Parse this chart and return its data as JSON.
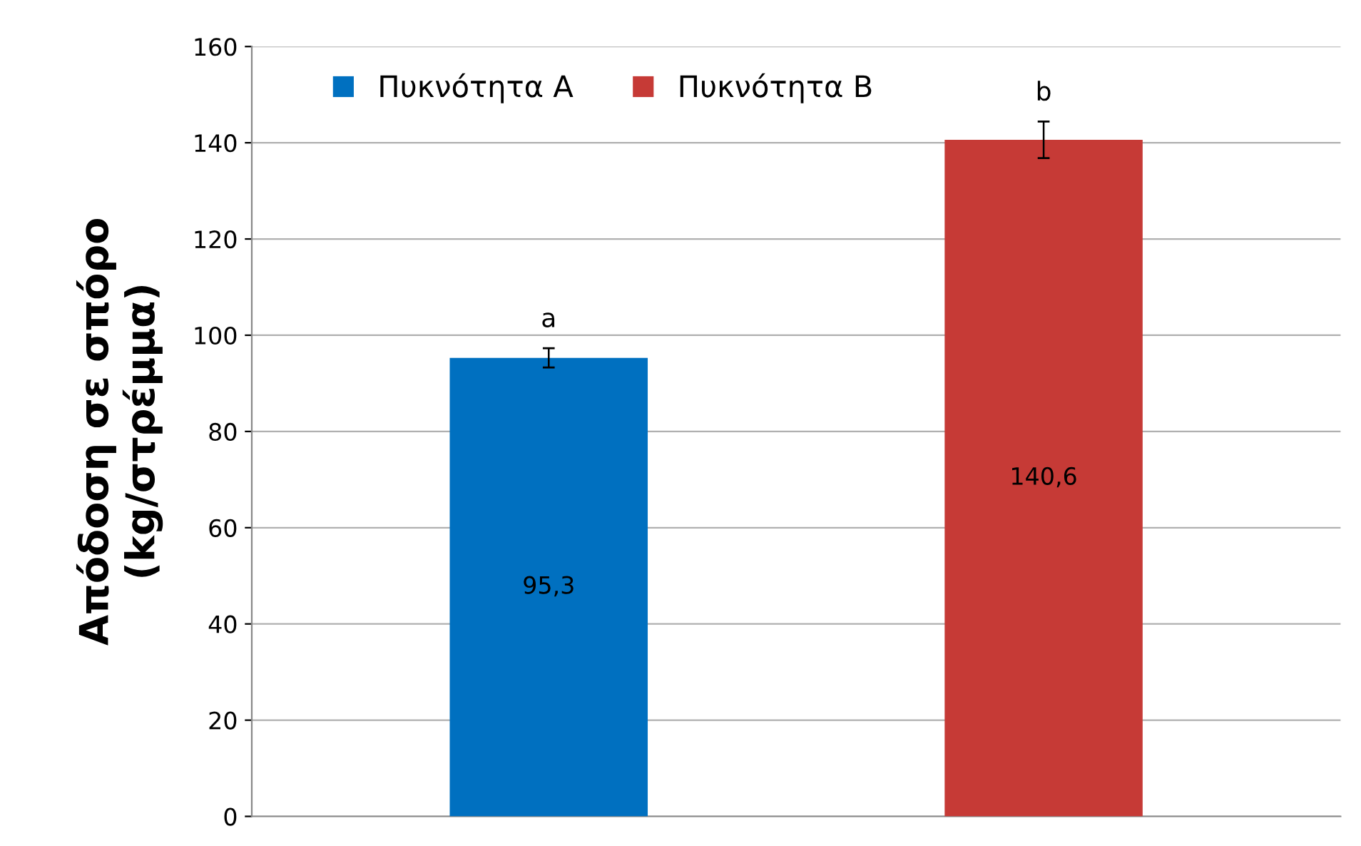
{
  "chart_data": {
    "type": "bar",
    "ylabel": "Απόδοση σε σπόρο\n(kg/στρέμμα)",
    "categories": [
      null,
      null
    ],
    "series": [
      {
        "name": "Πυκνότητα Α",
        "color": "#0070c0",
        "values": [
          95.3,
          null
        ],
        "errors": [
          2,
          null
        ],
        "value_labels": [
          "95,3",
          null
        ]
      },
      {
        "name": "Πυκνότητα Β",
        "color": "#c63a36",
        "values": [
          null,
          140.6
        ],
        "errors": [
          null,
          3.8
        ],
        "value_labels": [
          null,
          "140,6"
        ]
      }
    ],
    "annotations": [
      "a",
      "b"
    ],
    "ylim": [
      0,
      160
    ],
    "yticks": [
      0,
      20,
      40,
      60,
      80,
      100,
      120,
      140,
      160
    ],
    "grid": "y",
    "legend": "top left"
  }
}
